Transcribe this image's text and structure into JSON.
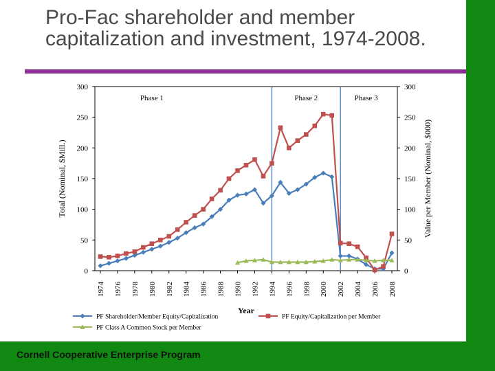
{
  "slide": {
    "title": "Pro-Fac shareholder and member capitalization and investment, 1974-2008.",
    "footer": "Cornell Cooperative Enterprise Program"
  },
  "colors": {
    "green": "#118811",
    "rule": "#8a2f91",
    "series_blue": "#4a7ebb",
    "series_red": "#c0504d",
    "series_green": "#9bbb59",
    "phase_line": "#4f81bd"
  },
  "chart_data": {
    "type": "line",
    "xlabel": "Year",
    "ylabel": "Total (Nominal, $Mill.)",
    "ylabel_right": "Value per Member (Nominal, $000)",
    "ylim": [
      0,
      300
    ],
    "ylim_right": [
      0,
      300
    ],
    "yticks": [
      "0",
      "50",
      "100",
      "150",
      "200",
      "250",
      "300"
    ],
    "x_tick_labels": [
      "1974",
      "1976",
      "1978",
      "1980",
      "1982",
      "1984",
      "1986",
      "1988",
      "1990",
      "1992",
      "1994",
      "1996",
      "1998",
      "2000",
      "2002",
      "2004",
      "2006",
      "2008"
    ],
    "x": [
      1974,
      1975,
      1976,
      1977,
      1978,
      1979,
      1980,
      1981,
      1982,
      1983,
      1984,
      1985,
      1986,
      1987,
      1988,
      1989,
      1990,
      1991,
      1992,
      1993,
      1994,
      1995,
      1996,
      1997,
      1998,
      1999,
      2000,
      2001,
      2002,
      2003,
      2004,
      2005,
      2006,
      2007,
      2008
    ],
    "phases": [
      {
        "label": "Phase 1",
        "start": 1974,
        "end": 1994,
        "label_x": 1980
      },
      {
        "label": "Phase 2",
        "start": 1994,
        "end": 2002,
        "label_x": 1998
      },
      {
        "label": "Phase 3",
        "start": 2002,
        "end": 2008,
        "label_x": 2005
      }
    ],
    "series": [
      {
        "name": "PF Shareholder/Member Equity/Capitalization",
        "axis": "left",
        "marker": "diamond",
        "color": "#4a7ebb",
        "values": [
          8,
          12,
          16,
          20,
          25,
          30,
          35,
          40,
          46,
          53,
          62,
          70,
          76,
          88,
          100,
          115,
          123,
          125,
          132,
          110,
          122,
          144,
          126,
          132,
          141,
          152,
          159,
          153,
          24,
          24,
          19,
          10,
          3,
          3,
          29
        ]
      },
      {
        "name": "PF Equity/Capitalization per Member",
        "axis": "right",
        "marker": "square",
        "color": "#c0504d",
        "values": [
          23,
          22,
          24,
          28,
          31,
          38,
          44,
          50,
          56,
          67,
          79,
          90,
          100,
          117,
          131,
          150,
          163,
          172,
          181,
          154,
          175,
          233,
          200,
          212,
          222,
          236,
          255,
          253,
          45,
          44,
          39,
          21,
          1,
          7,
          60
        ]
      },
      {
        "name": "PF Class A Common Stock per Member",
        "axis": "right",
        "marker": "triangle",
        "color": "#9bbb59",
        "values": [
          null,
          null,
          null,
          null,
          null,
          null,
          null,
          null,
          null,
          null,
          null,
          null,
          null,
          null,
          null,
          null,
          13,
          16,
          17,
          18,
          14,
          14,
          14,
          14,
          14,
          15,
          16,
          18,
          17,
          18,
          18,
          17,
          16,
          17,
          17
        ]
      }
    ],
    "legend_position": "bottom"
  }
}
